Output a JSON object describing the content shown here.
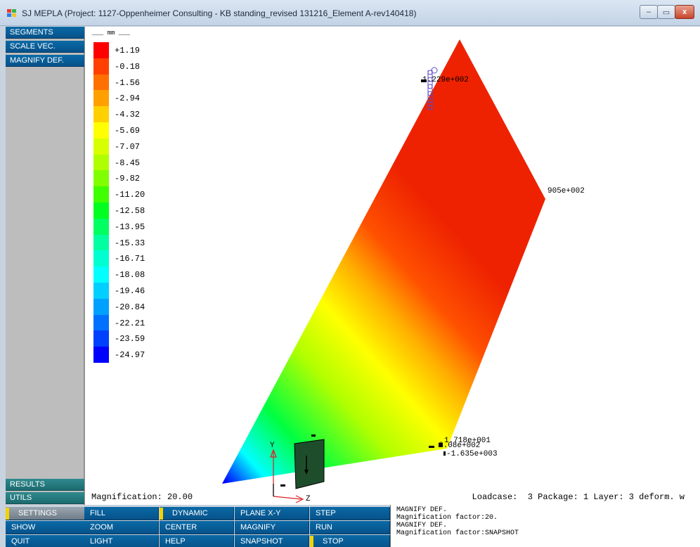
{
  "window": {
    "title": "SJ MEPLA (Project: 1127-Oppenheimer Consulting - KB standing_revised 131216_Element A-rev140418)",
    "minimize_icon": "minimize-icon",
    "maximize_icon": "maximize-icon",
    "close_icon": "close-icon",
    "minimize_glyph": "–",
    "maximize_glyph": "▭",
    "close_glyph": "x"
  },
  "side_menu": {
    "top": [
      "SEGMENTS",
      "SCALE VEC.",
      "MAGNIFY DEF."
    ],
    "results": "RESULTS",
    "utils": "UTILS"
  },
  "bottom_menu": {
    "settings": "SETTINGS",
    "show": "SHOW",
    "quit": "QUIT",
    "fill": "FILL",
    "zoom": "ZOOM",
    "light": "LIGHT",
    "dynamic": "DYNAMIC",
    "center": "CENTER",
    "help": "HELP",
    "plane": "PLANE X-Y",
    "magnify": "MAGNIFY",
    "snapshot": "SNAPSHOT",
    "step": "STEP",
    "run": "RUN",
    "stop": "STOP"
  },
  "legend": {
    "unit": "___ mm ___",
    "values": [
      "+1.19",
      "-0.18",
      "-1.56",
      "-2.94",
      "-4.32",
      "-5.69",
      "-7.07",
      "-8.45",
      "-9.82",
      "-11.20",
      "-12.58",
      "-13.95",
      "-15.33",
      "-16.71",
      "-18.08",
      "-19.46",
      "-20.84",
      "-22.21",
      "-23.59",
      "-24.97"
    ],
    "colors": [
      "#ff0000",
      "#ff4000",
      "#ff7000",
      "#ffa000",
      "#ffd000",
      "#ffff00",
      "#d8ff00",
      "#b0ff00",
      "#80ff00",
      "#40ff00",
      "#00ff20",
      "#00ff60",
      "#00ffa0",
      "#00ffd0",
      "#00ffff",
      "#00d0ff",
      "#00a0ff",
      "#0070ff",
      "#0040ff",
      "#0000ff"
    ]
  },
  "viewport": {
    "magnification": "Magnification: 20.00",
    "status": "Loadcase:  3 Package: 1 Layer: 3 deform. w",
    "annotations": {
      "top": "1.229e+002",
      "right": "905e+002",
      "bottom_a": "1.718e+001",
      "bottom_b": "2.08e+002",
      "bottom_c": "-1.635e+003"
    },
    "axes": {
      "y": "Y",
      "z": "Z"
    }
  },
  "console": {
    "lines": [
      "MAGNIFY DEF.",
      "Magnification factor:20.",
      "MAGNIFY DEF.",
      "Magnification factor:SNAPSHOT"
    ]
  }
}
